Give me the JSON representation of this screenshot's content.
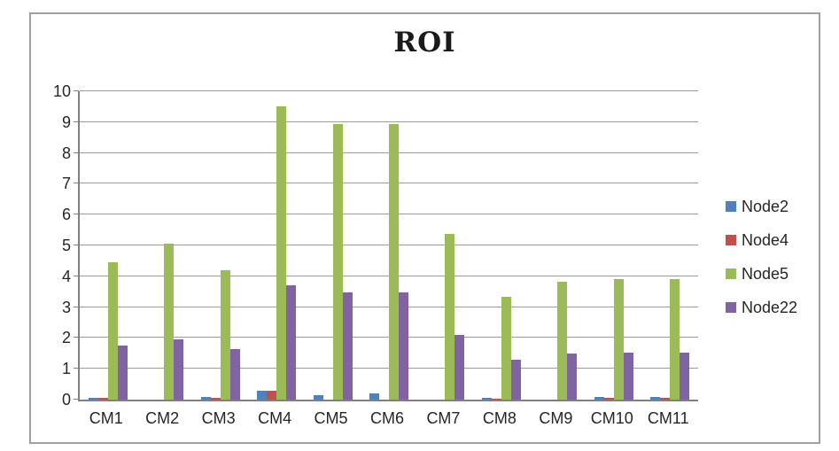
{
  "title": "ROI",
  "chart_data": {
    "type": "bar",
    "title": "ROI",
    "categories": [
      "CM1",
      "CM2",
      "CM3",
      "CM4",
      "CM5",
      "CM6",
      "CM7",
      "CM8",
      "CM9",
      "CM10",
      "CM11"
    ],
    "series": [
      {
        "name": "Node2",
        "color": "#4F81BD",
        "values": [
          0.07,
          0,
          0.08,
          0.3,
          0.15,
          0.2,
          0,
          0.05,
          0,
          0.08,
          0.08
        ]
      },
      {
        "name": "Node4",
        "color": "#C0504D",
        "values": [
          0.06,
          0,
          0.06,
          0.28,
          0,
          0,
          0,
          0.04,
          0,
          0.07,
          0.07
        ]
      },
      {
        "name": "Node5",
        "color": "#9BBB59",
        "values": [
          4.45,
          5.05,
          4.19,
          9.5,
          8.95,
          8.95,
          5.37,
          3.33,
          3.81,
          3.91,
          3.91
        ]
      },
      {
        "name": "Node22",
        "color": "#8064A2",
        "values": [
          1.74,
          1.96,
          1.63,
          3.71,
          3.49,
          3.49,
          2.11,
          1.29,
          1.49,
          1.53,
          1.53
        ]
      }
    ],
    "ylim": [
      0,
      10
    ],
    "yticks": [
      0,
      1,
      2,
      3,
      4,
      5,
      6,
      7,
      8,
      9,
      10
    ],
    "xlabel": "",
    "ylabel": "",
    "grid": "horizontal",
    "legend_position": "right",
    "legend_entries": [
      "Node2",
      "Node4",
      "Node5",
      "Node22"
    ]
  },
  "style_colors": {
    "gridline": "#9b9b9b",
    "axis": "#808080",
    "frame_border": "#a0a0a0",
    "text": "#262626"
  }
}
